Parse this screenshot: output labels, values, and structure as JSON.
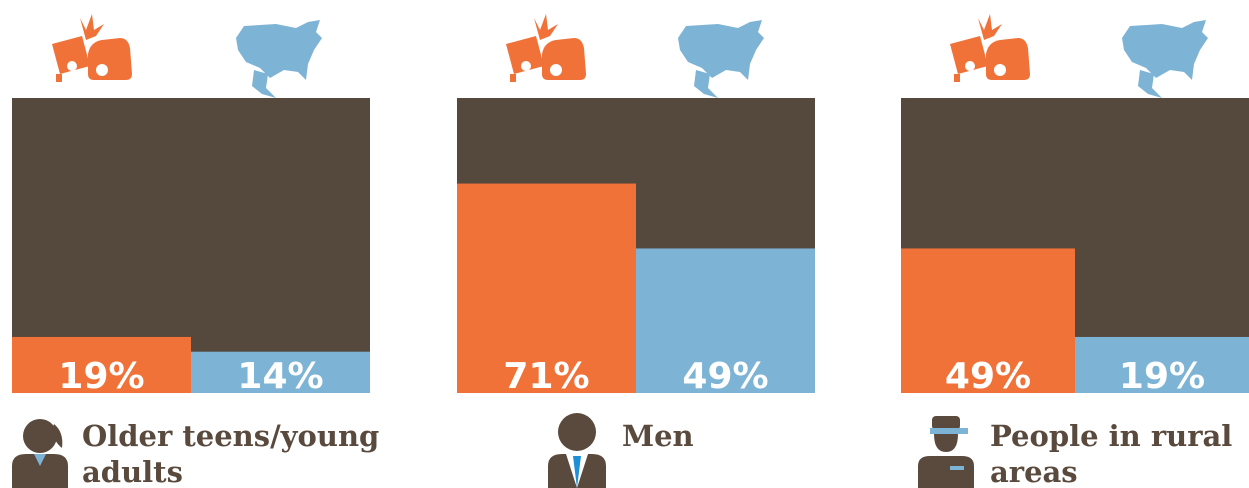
{
  "chart_data": [
    {
      "type": "bar",
      "title": "Older teens/young adults",
      "values": [
        19,
        14
      ],
      "value_labels": [
        "19%",
        "14%"
      ],
      "colors": [
        "#f07238",
        "#7db4d6"
      ],
      "ylim": [
        0,
        100
      ]
    },
    {
      "type": "bar",
      "title": "Men",
      "values": [
        71,
        49
      ],
      "value_labels": [
        "71%",
        "49%"
      ],
      "colors": [
        "#f07238",
        "#7db4d6"
      ],
      "ylim": [
        0,
        100
      ]
    },
    {
      "type": "bar",
      "title": "People in rural areas",
      "values": [
        49,
        19
      ],
      "value_labels": [
        "49%",
        "19%"
      ],
      "colors": [
        "#f07238",
        "#7db4d6"
      ],
      "ylim": [
        0,
        100
      ]
    }
  ]
}
